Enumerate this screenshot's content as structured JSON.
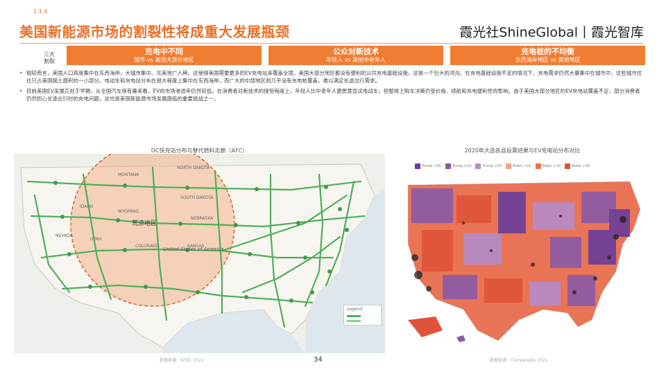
{
  "header": {
    "top_tag": "1.1.4",
    "title": "美国新能源市场的割裂性将成重大发展瓶颈",
    "brand": "霞光社ShineGlobal丨霞光智库"
  },
  "side_label": "三大割裂",
  "cards": [
    {
      "title": "充电中不同",
      "subtitle": "城市 vs 美国大部分地区"
    },
    {
      "title": "公众对新技术",
      "subtitle": "年轻人 vs 其他中老年人"
    },
    {
      "title": "充电桩的不均衡",
      "subtitle": "东西海岸地区 vs 其他地区"
    }
  ],
  "bullets": [
    "相较而言，美国人口高度集中在东西海岸，大城市集中。北美地广人稀，这使得美国需要更多的EV充电站来覆盖全境。美国大部分地区都没有便利的公共充电基础设施，这是一个巨大的鸿沟。在充电基础设施不足的情况下，充电需求仍然大量集中在城市中，这些城市往往只占美国国土面积的一小部分。电动车和充电站分布在很大程度上集中在东西海岸，而广大的中部地区则几乎没有充电桩覆盖，难以满足长途出行需求。",
    "目前美国EV发展正处于早期，从全国汽车保有量来看，EV的市场渗透率仍然较低。在消费者对新技术的接受程度上，年轻人比中老年人更愿意尝试电动车，但整体上购车决策仍受价格、续航和充电便利性的影响。由于美国大部分地区的EV充电站覆盖不足，部分消费者仍然担心长途出行时的充电问题，这也是美国新能源市场发展面临的重要挑战之一。"
  ],
  "captions": {
    "left": "DC快充站分布与替代燃料走廊（AFC）",
    "right": "2020年大选各县投票结果与EV充电站分布对比"
  },
  "legend_left": {
    "title": "Legend"
  },
  "map_left_labels": {
    "circle_label": "荒凉地区",
    "country": "United States of America",
    "states": [
      "MONTANA",
      "NORTH DAKOTA",
      "SOUTH DAKOTA",
      "WYOMING",
      "NEBRASKA",
      "IDAHO",
      "NEVADA",
      "UTAH",
      "COLORADO",
      "KANSAS"
    ]
  },
  "right_legend": [
    "Trump +30",
    "Trump +10",
    "Trump <10",
    "Biden <10",
    "Biden +10",
    "Biden +30"
  ],
  "sources": {
    "left": "数据来源：AFDC 2022",
    "right": "数据来源：Comparably 2021"
  },
  "page_number": "34",
  "colors": {
    "accent": "#ef7d32",
    "corridor": "#4caf5a",
    "circle": "#f2b38a",
    "red": "#e0533b",
    "purple": "#8a5aa8"
  }
}
